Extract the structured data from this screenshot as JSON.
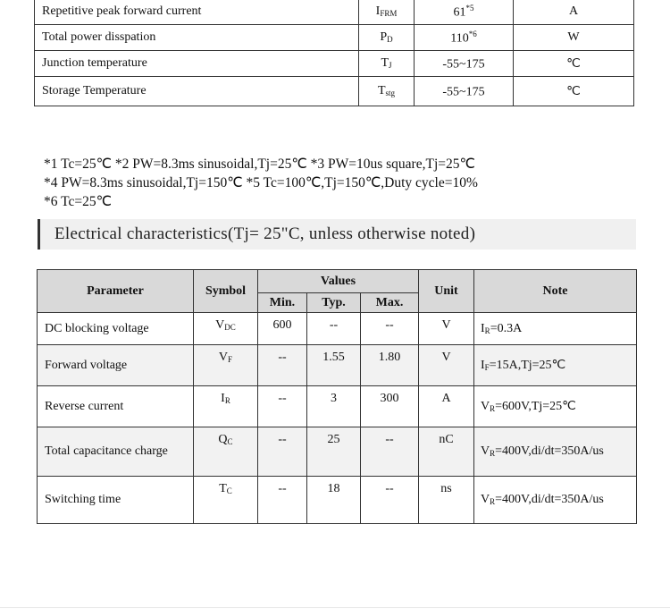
{
  "max_ratings": [
    {
      "parameter": "Repetitive peak forward current",
      "symbol": "I",
      "symbol_sub": "FRM",
      "value": "61",
      "value_sup": "*5",
      "unit": "A"
    },
    {
      "parameter": "Total power disspation",
      "symbol": "P",
      "symbol_sub": "D",
      "value": "110",
      "value_sup": "*6",
      "unit": "W"
    },
    {
      "parameter": "Junction temperature",
      "symbol": "T",
      "symbol_sub": "J",
      "value": "-55~175",
      "value_sup": "",
      "unit": "℃"
    },
    {
      "parameter": "Storage Temperature",
      "symbol": "T",
      "symbol_sub": "stg",
      "value": "-55~175",
      "value_sup": "",
      "unit": "℃"
    }
  ],
  "notes": [
    "*1 Tc=25℃  *2 PW=8.3ms sinusoidal,Tj=25℃  *3 PW=10us square,Tj=25℃",
    "*4 PW=8.3ms sinusoidal,Tj=150℃  *5 Tc=100℃,Tj=150℃,Duty cycle=10%",
    "*6 Tc=25℃"
  ],
  "section_heading": "Electrical characteristics(Tj= 25\"C, unless otherwise noted)",
  "elec_headers": {
    "parameter": "Parameter",
    "symbol": "Symbol",
    "values": "Values",
    "min": "Min.",
    "typ": "Typ.",
    "max": "Max.",
    "unit": "Unit",
    "note": "Note"
  },
  "elec_rows": [
    {
      "parameter": "DC blocking voltage",
      "symbol": "V",
      "symbol_sub": "DC",
      "min": "600",
      "typ": "--",
      "max": "--",
      "unit": "V",
      "note_pre": "I",
      "note_sub": "R",
      "note_rest": "=0.3A"
    },
    {
      "parameter": "Forward voltage",
      "symbol": "V",
      "symbol_sub": "F",
      "min": "--",
      "typ": "1.55",
      "max": "1.80",
      "unit": "V",
      "note_pre": "I",
      "note_sub": "F",
      "note_rest": "=15A,Tj=25℃"
    },
    {
      "parameter": "Reverse current",
      "symbol": "I",
      "symbol_sub": "R",
      "min": "--",
      "typ": "3",
      "max": "300",
      "unit": "A",
      "note_pre": "V",
      "note_sub": "R",
      "note_rest": "=600V,Tj=25℃"
    },
    {
      "parameter": "Total capacitance charge",
      "symbol": "Q",
      "symbol_sub": "C",
      "min": "--",
      "typ": "25",
      "max": "--",
      "unit": "nC",
      "note_pre": "V",
      "note_sub": "R",
      "note_rest": "=400V,di/dt=350A/us"
    },
    {
      "parameter": "Switching time",
      "symbol": "T",
      "symbol_sub": "C",
      "min": "--",
      "typ": "18",
      "max": "--",
      "unit": "ns",
      "note_pre": "V",
      "note_sub": "R",
      "note_rest": "=400V,di/dt=350A/us"
    }
  ]
}
